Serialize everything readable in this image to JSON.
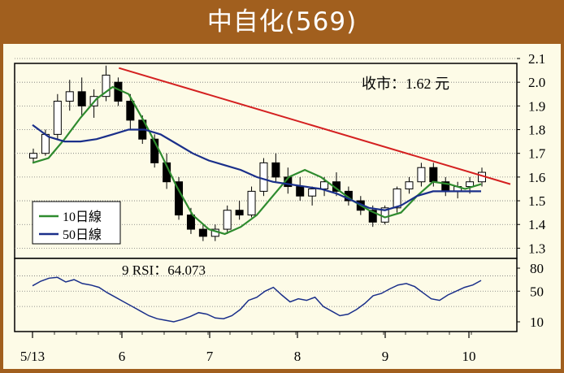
{
  "header": {
    "title": "中自化(569)"
  },
  "price_label": "收市：1.62 元",
  "rsi_label": "9 RSI：64.073",
  "colors": {
    "frame": "#a15f1e",
    "panel": "#fdfbe7",
    "up_candle": "#ffffff",
    "down_candle": "#000000",
    "ma10": "#2e8b2e",
    "ma50": "#1a2f8a",
    "trendline": "#d42020",
    "rsi": "#1a2f8a"
  },
  "chart_data": [
    {
      "type": "candlestick",
      "title": "",
      "x_labels": [
        "5/13",
        "6",
        "7",
        "8",
        "9",
        "10"
      ],
      "ylim": [
        1.25,
        2.1
      ],
      "y_ticks": [
        "2.1",
        "2.0",
        "1.9",
        "1.8",
        "1.7",
        "1.6",
        "1.5",
        "1.4",
        "1.3"
      ],
      "grid": true,
      "legend": {
        "placement": "lower-left",
        "entries": [
          "10日線",
          "50日線"
        ]
      },
      "series": [
        {
          "name": "10日線",
          "type": "line",
          "values": [
            1.66,
            1.68,
            1.76,
            1.85,
            1.93,
            1.98,
            1.95,
            1.83,
            1.7,
            1.56,
            1.44,
            1.38,
            1.36,
            1.39,
            1.44,
            1.52,
            1.6,
            1.63,
            1.6,
            1.55,
            1.5,
            1.46,
            1.43,
            1.45,
            1.52,
            1.58,
            1.57,
            1.55,
            1.57
          ]
        },
        {
          "name": "50日線",
          "type": "line",
          "values": [
            1.82,
            1.77,
            1.75,
            1.75,
            1.76,
            1.78,
            1.8,
            1.8,
            1.78,
            1.74,
            1.7,
            1.67,
            1.65,
            1.63,
            1.6,
            1.58,
            1.57,
            1.56,
            1.55,
            1.53,
            1.5,
            1.47,
            1.46,
            1.48,
            1.52,
            1.54,
            1.54,
            1.54,
            1.54
          ]
        }
      ],
      "candles": [
        [
          1.68,
          1.72,
          1.66,
          1.7
        ],
        [
          1.7,
          1.8,
          1.69,
          1.78
        ],
        [
          1.78,
          1.95,
          1.76,
          1.92
        ],
        [
          1.92,
          2.01,
          1.88,
          1.96
        ],
        [
          1.96,
          2.02,
          1.86,
          1.9
        ],
        [
          1.9,
          1.97,
          1.85,
          1.94
        ],
        [
          1.94,
          2.07,
          1.92,
          2.03
        ],
        [
          2.0,
          2.02,
          1.9,
          1.92
        ],
        [
          1.92,
          1.95,
          1.8,
          1.84
        ],
        [
          1.84,
          1.86,
          1.74,
          1.76
        ],
        [
          1.76,
          1.78,
          1.64,
          1.66
        ],
        [
          1.66,
          1.7,
          1.55,
          1.58
        ],
        [
          1.58,
          1.6,
          1.42,
          1.44
        ],
        [
          1.44,
          1.47,
          1.36,
          1.38
        ],
        [
          1.38,
          1.4,
          1.33,
          1.35
        ],
        [
          1.35,
          1.4,
          1.33,
          1.38
        ],
        [
          1.38,
          1.48,
          1.36,
          1.46
        ],
        [
          1.46,
          1.5,
          1.42,
          1.44
        ],
        [
          1.44,
          1.56,
          1.43,
          1.54
        ],
        [
          1.54,
          1.68,
          1.52,
          1.66
        ],
        [
          1.66,
          1.7,
          1.58,
          1.6
        ],
        [
          1.6,
          1.64,
          1.53,
          1.56
        ],
        [
          1.56,
          1.6,
          1.5,
          1.52
        ],
        [
          1.52,
          1.56,
          1.48,
          1.55
        ],
        [
          1.55,
          1.6,
          1.52,
          1.58
        ],
        [
          1.58,
          1.62,
          1.52,
          1.54
        ],
        [
          1.54,
          1.56,
          1.48,
          1.5
        ],
        [
          1.5,
          1.52,
          1.44,
          1.46
        ],
        [
          1.46,
          1.48,
          1.39,
          1.41
        ],
        [
          1.41,
          1.48,
          1.4,
          1.47
        ],
        [
          1.47,
          1.56,
          1.45,
          1.55
        ],
        [
          1.55,
          1.6,
          1.53,
          1.58
        ],
        [
          1.58,
          1.66,
          1.56,
          1.64
        ],
        [
          1.64,
          1.66,
          1.56,
          1.58
        ],
        [
          1.58,
          1.6,
          1.52,
          1.54
        ],
        [
          1.54,
          1.58,
          1.51,
          1.56
        ],
        [
          1.56,
          1.6,
          1.53,
          1.58
        ],
        [
          1.58,
          1.64,
          1.56,
          1.62
        ]
      ],
      "trendline": {
        "start": [
          0.29,
          2.06
        ],
        "end": [
          1.0,
          1.57
        ]
      }
    },
    {
      "type": "line",
      "title": "9 RSI",
      "ylim": [
        10,
        80
      ],
      "y_ticks": [
        "80",
        "50",
        "10"
      ],
      "gridlines": [
        70,
        50,
        30
      ],
      "series": [
        {
          "name": "9 RSI",
          "values": [
            57,
            63,
            67,
            68,
            62,
            65,
            60,
            58,
            55,
            48,
            42,
            36,
            30,
            24,
            18,
            14,
            12,
            10,
            13,
            17,
            22,
            20,
            15,
            14,
            18,
            26,
            38,
            42,
            50,
            55,
            45,
            36,
            40,
            38,
            42,
            30,
            24,
            18,
            20,
            26,
            34,
            44,
            47,
            53,
            58,
            60,
            56,
            48,
            40,
            38,
            45,
            50,
            55,
            58,
            64
          ]
        }
      ]
    }
  ]
}
